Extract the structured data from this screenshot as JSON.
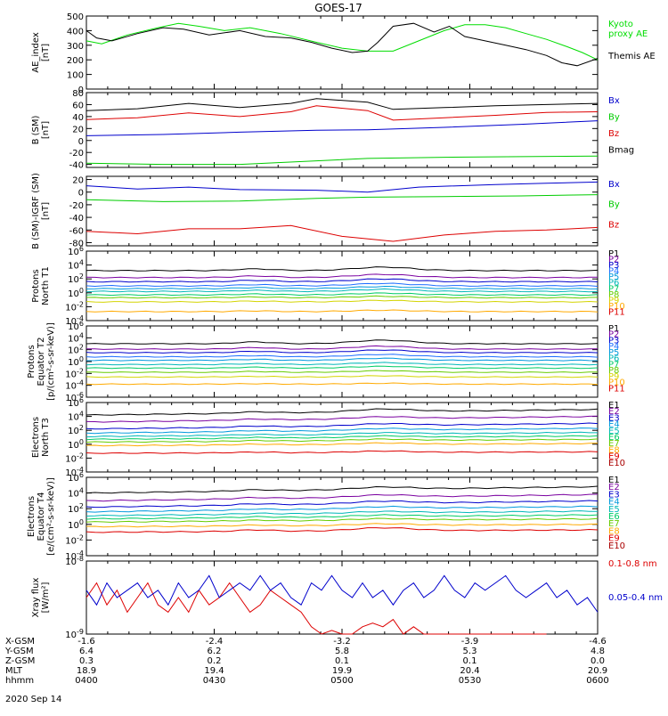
{
  "title": "GOES-17",
  "date_label": "2020 Sep 14",
  "footer": {
    "rows": [
      {
        "label": "X-GSM",
        "values": [
          "-1.6",
          "-2.4",
          "-3.2",
          "-3.9",
          "-4.6"
        ]
      },
      {
        "label": "Y-GSM",
        "values": [
          "6.4",
          "6.2",
          "5.8",
          "5.3",
          "4.8"
        ]
      },
      {
        "label": "Z-GSM",
        "values": [
          "0.3",
          "0.2",
          "0.1",
          "0.1",
          "0.0"
        ]
      },
      {
        "label": "MLT",
        "values": [
          "18.9",
          "19.4",
          "19.9",
          "20.4",
          "20.9"
        ]
      },
      {
        "label": "hhmm",
        "values": [
          "0400",
          "0430",
          "0500",
          "0530",
          "0600"
        ]
      }
    ]
  },
  "chart_data": [
    {
      "id": "ae",
      "type": "line",
      "ylabel": [
        "AE_index",
        "[nT]"
      ],
      "ylim": [
        0,
        500
      ],
      "yticks": [
        "0",
        "100",
        "200",
        "300",
        "400",
        "500"
      ],
      "series": [
        {
          "name": "Kyoto\nproxy AE",
          "color": "#00dd00",
          "x": [
            0,
            0.03,
            0.08,
            0.14,
            0.18,
            0.22,
            0.27,
            0.32,
            0.38,
            0.45,
            0.5,
            0.55,
            0.6,
            0.65,
            0.7,
            0.74,
            0.78,
            0.82,
            0.86,
            0.9,
            0.94,
            0.97,
            1
          ],
          "y": [
            330,
            310,
            370,
            420,
            450,
            430,
            400,
            420,
            380,
            320,
            280,
            260,
            260,
            330,
            400,
            440,
            440,
            420,
            380,
            340,
            290,
            250,
            200
          ]
        },
        {
          "name": "Themis AE",
          "color": "#000000",
          "x": [
            0,
            0.02,
            0.05,
            0.1,
            0.15,
            0.19,
            0.24,
            0.3,
            0.35,
            0.4,
            0.44,
            0.48,
            0.52,
            0.55,
            0.57,
            0.6,
            0.64,
            0.68,
            0.71,
            0.74,
            0.78,
            0.82,
            0.86,
            0.9,
            0.93,
            0.96,
            1
          ],
          "y": [
            400,
            350,
            330,
            380,
            420,
            410,
            370,
            400,
            360,
            350,
            320,
            280,
            250,
            260,
            320,
            430,
            450,
            390,
            430,
            360,
            330,
            300,
            270,
            230,
            180,
            160,
            210
          ]
        }
      ]
    },
    {
      "id": "bsm",
      "type": "line",
      "ylabel": [
        "B (SM)",
        "[nT]"
      ],
      "ylim": [
        -45,
        80
      ],
      "yticks": [
        "-40",
        "-20",
        "0",
        "20",
        "40",
        "60",
        "80"
      ],
      "ytick_values": [
        -40,
        -20,
        0,
        20,
        40,
        60,
        80
      ],
      "series": [
        {
          "name": "Bx",
          "color": "#0000cc",
          "x": [
            0,
            0.15,
            0.3,
            0.45,
            0.55,
            0.7,
            0.85,
            1
          ],
          "y": [
            8,
            10,
            14,
            17,
            18,
            22,
            27,
            33
          ]
        },
        {
          "name": "By",
          "color": "#00cc00",
          "x": [
            0,
            0.15,
            0.3,
            0.45,
            0.55,
            0.7,
            0.85,
            1
          ],
          "y": [
            -38,
            -40,
            -40,
            -34,
            -30,
            -28,
            -27,
            -26
          ]
        },
        {
          "name": "Bz",
          "color": "#dd0000",
          "x": [
            0,
            0.1,
            0.2,
            0.3,
            0.4,
            0.45,
            0.55,
            0.6,
            0.7,
            0.8,
            0.9,
            1
          ],
          "y": [
            35,
            38,
            46,
            40,
            48,
            58,
            50,
            34,
            38,
            42,
            47,
            48
          ]
        },
        {
          "name": "Bmag",
          "color": "#000000",
          "x": [
            0,
            0.1,
            0.2,
            0.3,
            0.4,
            0.45,
            0.55,
            0.6,
            0.7,
            0.8,
            0.9,
            1
          ],
          "y": [
            50,
            53,
            62,
            55,
            62,
            70,
            64,
            52,
            55,
            58,
            60,
            62
          ]
        }
      ]
    },
    {
      "id": "bsm-igrf",
      "type": "line",
      "ylabel": [
        "B (SM)-IGRF (SM)",
        "[nT]"
      ],
      "ylim": [
        -85,
        25
      ],
      "yticks": [
        "-80",
        "-60",
        "-40",
        "-20",
        "0",
        "20"
      ],
      "ytick_values": [
        -80,
        -60,
        -40,
        -20,
        0,
        20
      ],
      "series": [
        {
          "name": "Bx",
          "color": "#0000cc",
          "x": [
            0,
            0.1,
            0.2,
            0.3,
            0.45,
            0.55,
            0.65,
            0.8,
            0.9,
            1
          ],
          "y": [
            10,
            5,
            8,
            4,
            3,
            0,
            8,
            12,
            14,
            16
          ]
        },
        {
          "name": "By",
          "color": "#00cc00",
          "x": [
            0,
            0.15,
            0.3,
            0.45,
            0.55,
            0.7,
            0.85,
            1
          ],
          "y": [
            -12,
            -15,
            -14,
            -10,
            -8,
            -7,
            -6,
            -4
          ]
        },
        {
          "name": "Bz",
          "color": "#dd0000",
          "x": [
            0,
            0.1,
            0.2,
            0.3,
            0.4,
            0.5,
            0.6,
            0.7,
            0.8,
            0.9,
            1
          ],
          "y": [
            -62,
            -66,
            -58,
            -58,
            -53,
            -70,
            -78,
            -68,
            -62,
            -60,
            -56
          ]
        }
      ]
    },
    {
      "id": "protons-north",
      "type": "line",
      "ylabel": [
        "Protons",
        "North T1"
      ],
      "log": true,
      "ylim": [
        -4,
        6
      ],
      "yticks": [
        "10-4",
        "10-2",
        "100",
        "102",
        "104",
        "106"
      ],
      "ytick_values": [
        -4,
        -2,
        0,
        2,
        4,
        6
      ],
      "series": [
        {
          "name": "P1",
          "color": "#000000",
          "base": 3.2,
          "amp": 0.5
        },
        {
          "name": "P2",
          "color": "#7a00a0",
          "base": 2.2,
          "amp": 0.45
        },
        {
          "name": "P3",
          "color": "#0000cc",
          "base": 1.6,
          "amp": 0.4
        },
        {
          "name": "P4",
          "color": "#1d6eff",
          "base": 1.0,
          "amp": 0.35
        },
        {
          "name": "P5",
          "color": "#0099dd",
          "base": 0.6,
          "amp": 0.3
        },
        {
          "name": "P6",
          "color": "#00b8b8",
          "base": 0.2,
          "amp": 0.3
        },
        {
          "name": "P7",
          "color": "#00cc66",
          "base": -0.3,
          "amp": 0.25
        },
        {
          "name": "P8",
          "color": "#66cc00",
          "base": -0.7,
          "amp": 0.2
        },
        {
          "name": "P9",
          "color": "#d4d400",
          "base": -1.3,
          "amp": 0.2
        },
        {
          "name": "P10",
          "color": "#ffaa00",
          "base": -2.7,
          "amp": 0.2
        },
        {
          "name": "P11",
          "color": "#dd0000",
          "base": -4.0,
          "amp": 0.0
        }
      ]
    },
    {
      "id": "protons-equator",
      "type": "line",
      "ylabel": [
        "Protons",
        "Equator T2",
        "[p/(cm²-s-sr-keV)]"
      ],
      "log": true,
      "ylim": [
        -6,
        6
      ],
      "yticks": [
        "10-6",
        "10-4",
        "10-2",
        "100",
        "102",
        "104",
        "106"
      ],
      "ytick_values": [
        -6,
        -4,
        -2,
        0,
        2,
        4,
        6
      ],
      "series": [
        {
          "name": "P1",
          "color": "#000000",
          "base": 3.0,
          "amp": 0.6
        },
        {
          "name": "P2",
          "color": "#7a00a0",
          "base": 2.1,
          "amp": 0.5
        },
        {
          "name": "P3",
          "color": "#0000cc",
          "base": 1.5,
          "amp": 0.45
        },
        {
          "name": "P4",
          "color": "#1d6eff",
          "base": 0.8,
          "amp": 0.4
        },
        {
          "name": "P5",
          "color": "#0099dd",
          "base": 0.2,
          "amp": 0.35
        },
        {
          "name": "P6",
          "color": "#00b8b8",
          "base": -0.5,
          "amp": 0.3
        },
        {
          "name": "P7",
          "color": "#00cc66",
          "base": -1.1,
          "amp": 0.3
        },
        {
          "name": "P8",
          "color": "#66cc00",
          "base": -1.8,
          "amp": 0.25
        },
        {
          "name": "P9",
          "color": "#d4d400",
          "base": -2.6,
          "amp": 0.2
        },
        {
          "name": "P10",
          "color": "#ffaa00",
          "base": -3.8,
          "amp": 0.15
        },
        {
          "name": "P11",
          "color": "#dd0000",
          "base": -6.5,
          "amp": 0.0
        }
      ]
    },
    {
      "id": "electrons-north",
      "type": "line",
      "ylabel": [
        "Electrons",
        "North T3"
      ],
      "log": true,
      "ylim": [
        -4,
        6
      ],
      "yticks": [
        "10-4",
        "10-2",
        "100",
        "102",
        "104",
        "106"
      ],
      "ytick_values": [
        -4,
        -2,
        0,
        2,
        4,
        6
      ],
      "series": [
        {
          "name": "E1",
          "color": "#000000",
          "base": 4.2,
          "amp": 0.4,
          "trend": 0.8
        },
        {
          "name": "E2",
          "color": "#7a00a0",
          "base": 3.2,
          "amp": 0.3,
          "trend": 0.8
        },
        {
          "name": "E3",
          "color": "#0000cc",
          "base": 2.2,
          "amp": 0.3,
          "trend": 0.8
        },
        {
          "name": "E4",
          "color": "#0099dd",
          "base": 1.6,
          "amp": 0.25,
          "trend": 0.7
        },
        {
          "name": "E5",
          "color": "#00b8b8",
          "base": 1.1,
          "amp": 0.2,
          "trend": 0.6
        },
        {
          "name": "E6",
          "color": "#00cc66",
          "base": 0.7,
          "amp": 0.2,
          "trend": 0.5
        },
        {
          "name": "E7",
          "color": "#66cc00",
          "base": 0.3,
          "amp": 0.2,
          "trend": 0.4
        },
        {
          "name": "E8",
          "color": "#ffaa00",
          "base": -0.2,
          "amp": 0.2,
          "trend": 0.3
        },
        {
          "name": "E9",
          "color": "#dd0000",
          "base": -1.3,
          "amp": 0.2,
          "trend": 0.2
        },
        {
          "name": "E10",
          "color": "#aa0000",
          "base": -5.0,
          "amp": 0.0,
          "trend": 0.0
        }
      ]
    },
    {
      "id": "electrons-equator",
      "type": "line",
      "ylabel": [
        "Electrons",
        "Equator T4",
        "[e/(cm²-s-sr-keV)]"
      ],
      "log": true,
      "ylim": [
        -4,
        6
      ],
      "yticks": [
        "10-4",
        "10-2",
        "100",
        "102",
        "104",
        "106"
      ],
      "ytick_values": [
        -4,
        -2,
        0,
        2,
        4,
        6
      ],
      "series": [
        {
          "name": "E1",
          "color": "#000000",
          "base": 4.0,
          "amp": 0.3,
          "trend": 0.8
        },
        {
          "name": "E2",
          "color": "#7a00a0",
          "base": 3.0,
          "amp": 0.3,
          "trend": 0.8
        },
        {
          "name": "E3",
          "color": "#0000cc",
          "base": 2.2,
          "amp": 0.3,
          "trend": 0.8
        },
        {
          "name": "E4",
          "color": "#0099dd",
          "base": 1.6,
          "amp": 0.25,
          "trend": 0.7
        },
        {
          "name": "E5",
          "color": "#00b8b8",
          "base": 1.1,
          "amp": 0.2,
          "trend": 0.6
        },
        {
          "name": "E6",
          "color": "#00cc66",
          "base": 0.7,
          "amp": 0.2,
          "trend": 0.5
        },
        {
          "name": "E7",
          "color": "#66cc00",
          "base": 0.3,
          "amp": 0.2,
          "trend": 0.4
        },
        {
          "name": "E8",
          "color": "#ffaa00",
          "base": -0.3,
          "amp": 0.2,
          "trend": 0.3
        },
        {
          "name": "E9",
          "color": "#dd0000",
          "base": -1.0,
          "amp": 0.4,
          "trend": 0.3
        },
        {
          "name": "E10",
          "color": "#aa0000",
          "base": -5.0,
          "amp": 0.0,
          "trend": 0.0
        }
      ]
    },
    {
      "id": "xray",
      "type": "line",
      "ylabel": [
        "Xray flux",
        "[W/m²]"
      ],
      "log": true,
      "ylim": [
        -9,
        -8
      ],
      "yticks": [
        "10-9",
        "10-8"
      ],
      "ytick_values": [
        -9,
        -8
      ],
      "series": [
        {
          "name": "0.1-0.8 nm",
          "color": "#dd0000",
          "x": [
            0,
            0.02,
            0.04,
            0.06,
            0.08,
            0.1,
            0.12,
            0.14,
            0.16,
            0.18,
            0.2,
            0.22,
            0.24,
            0.26,
            0.28,
            0.3,
            0.32,
            0.34,
            0.36,
            0.38,
            0.4,
            0.42,
            0.44,
            0.46,
            0.48,
            0.5,
            0.52,
            0.54,
            0.56,
            0.58,
            0.6,
            0.62,
            0.64,
            0.66,
            0.68,
            0.7,
            0.72,
            0.74,
            0.76,
            0.78,
            0.8,
            0.82,
            0.84,
            0.86,
            0.88,
            0.9
          ],
          "y": [
            -8.5,
            -8.3,
            -8.6,
            -8.4,
            -8.7,
            -8.5,
            -8.3,
            -8.6,
            -8.7,
            -8.5,
            -8.7,
            -8.4,
            -8.6,
            -8.5,
            -8.3,
            -8.5,
            -8.7,
            -8.6,
            -8.4,
            -8.5,
            -8.6,
            -8.7,
            -8.9,
            -9.0,
            -8.95,
            -9.0,
            -9.0,
            -8.9,
            -8.85,
            -8.9,
            -8.8,
            -9.0,
            -8.9,
            -9.0,
            -9.0,
            -9.0,
            -9.0,
            -9.0,
            -9.0,
            -9.0,
            -9.0,
            -9.0,
            -9.0,
            -9.0,
            -9.0,
            -9.0
          ]
        },
        {
          "name": "0.05-0.4 nm",
          "color": "#0000cc",
          "x": [
            0,
            0.02,
            0.04,
            0.06,
            0.08,
            0.1,
            0.12,
            0.14,
            0.16,
            0.18,
            0.2,
            0.22,
            0.24,
            0.26,
            0.28,
            0.3,
            0.32,
            0.34,
            0.36,
            0.38,
            0.4,
            0.42,
            0.44,
            0.46,
            0.48,
            0.5,
            0.52,
            0.54,
            0.56,
            0.58,
            0.6,
            0.62,
            0.64,
            0.66,
            0.68,
            0.7,
            0.72,
            0.74,
            0.76,
            0.78,
            0.8,
            0.82,
            0.84,
            0.86,
            0.88,
            0.9,
            0.92,
            0.94,
            0.96,
            0.98,
            1
          ],
          "y": [
            -8.4,
            -8.6,
            -8.3,
            -8.5,
            -8.4,
            -8.3,
            -8.5,
            -8.4,
            -8.6,
            -8.3,
            -8.5,
            -8.4,
            -8.2,
            -8.5,
            -8.4,
            -8.3,
            -8.4,
            -8.2,
            -8.4,
            -8.3,
            -8.5,
            -8.6,
            -8.3,
            -8.4,
            -8.2,
            -8.4,
            -8.5,
            -8.3,
            -8.5,
            -8.4,
            -8.6,
            -8.4,
            -8.3,
            -8.5,
            -8.4,
            -8.2,
            -8.4,
            -8.5,
            -8.3,
            -8.4,
            -8.3,
            -8.2,
            -8.4,
            -8.5,
            -8.4,
            -8.3,
            -8.5,
            -8.4,
            -8.6,
            -8.5,
            -8.7
          ]
        }
      ]
    }
  ]
}
